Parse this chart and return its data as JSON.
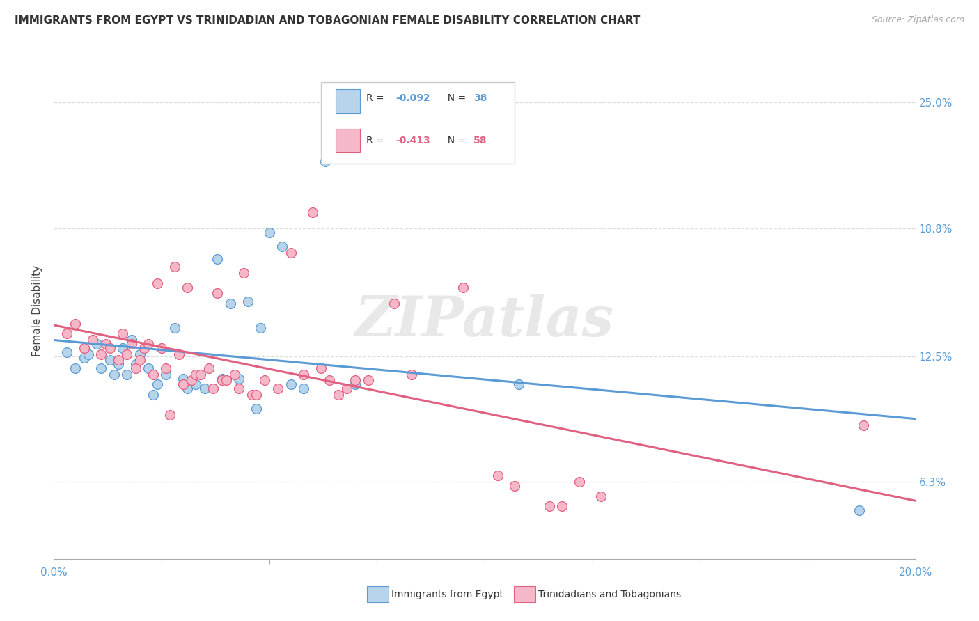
{
  "title": "IMMIGRANTS FROM EGYPT VS TRINIDADIAN AND TOBAGONIAN FEMALE DISABILITY CORRELATION CHART",
  "source": "Source: ZipAtlas.com",
  "ylabel": "Female Disability",
  "ytick_labels": [
    "6.3%",
    "12.5%",
    "18.8%",
    "25.0%"
  ],
  "ytick_values": [
    0.063,
    0.125,
    0.188,
    0.25
  ],
  "xlim": [
    0.0,
    0.2
  ],
  "ylim": [
    0.025,
    0.27
  ],
  "watermark": "ZIPatlas",
  "blue_color": "#b8d4ea",
  "pink_color": "#f5b8c8",
  "blue_line_color": "#5b9bd5",
  "pink_line_color": "#e06080",
  "blue_scatter": [
    [
      0.003,
      0.127
    ],
    [
      0.005,
      0.119
    ],
    [
      0.007,
      0.124
    ],
    [
      0.008,
      0.126
    ],
    [
      0.01,
      0.131
    ],
    [
      0.011,
      0.119
    ],
    [
      0.013,
      0.123
    ],
    [
      0.014,
      0.116
    ],
    [
      0.015,
      0.121
    ],
    [
      0.016,
      0.129
    ],
    [
      0.017,
      0.116
    ],
    [
      0.018,
      0.133
    ],
    [
      0.019,
      0.121
    ],
    [
      0.02,
      0.126
    ],
    [
      0.022,
      0.119
    ],
    [
      0.023,
      0.106
    ],
    [
      0.024,
      0.111
    ],
    [
      0.026,
      0.116
    ],
    [
      0.028,
      0.139
    ],
    [
      0.03,
      0.114
    ],
    [
      0.031,
      0.109
    ],
    [
      0.033,
      0.111
    ],
    [
      0.035,
      0.109
    ],
    [
      0.038,
      0.173
    ],
    [
      0.039,
      0.114
    ],
    [
      0.041,
      0.151
    ],
    [
      0.043,
      0.114
    ],
    [
      0.045,
      0.152
    ],
    [
      0.047,
      0.099
    ],
    [
      0.048,
      0.139
    ],
    [
      0.05,
      0.186
    ],
    [
      0.053,
      0.179
    ],
    [
      0.055,
      0.111
    ],
    [
      0.058,
      0.109
    ],
    [
      0.063,
      0.221
    ],
    [
      0.07,
      0.111
    ],
    [
      0.108,
      0.111
    ],
    [
      0.187,
      0.049
    ]
  ],
  "pink_scatter": [
    [
      0.003,
      0.136
    ],
    [
      0.005,
      0.141
    ],
    [
      0.007,
      0.129
    ],
    [
      0.009,
      0.133
    ],
    [
      0.011,
      0.126
    ],
    [
      0.012,
      0.131
    ],
    [
      0.013,
      0.129
    ],
    [
      0.015,
      0.123
    ],
    [
      0.016,
      0.136
    ],
    [
      0.017,
      0.126
    ],
    [
      0.018,
      0.131
    ],
    [
      0.019,
      0.119
    ],
    [
      0.02,
      0.123
    ],
    [
      0.021,
      0.129
    ],
    [
      0.022,
      0.131
    ],
    [
      0.023,
      0.116
    ],
    [
      0.024,
      0.161
    ],
    [
      0.025,
      0.129
    ],
    [
      0.026,
      0.119
    ],
    [
      0.027,
      0.096
    ],
    [
      0.028,
      0.169
    ],
    [
      0.029,
      0.126
    ],
    [
      0.03,
      0.111
    ],
    [
      0.031,
      0.159
    ],
    [
      0.032,
      0.113
    ],
    [
      0.033,
      0.116
    ],
    [
      0.034,
      0.116
    ],
    [
      0.036,
      0.119
    ],
    [
      0.037,
      0.109
    ],
    [
      0.038,
      0.156
    ],
    [
      0.039,
      0.113
    ],
    [
      0.04,
      0.113
    ],
    [
      0.042,
      0.116
    ],
    [
      0.043,
      0.109
    ],
    [
      0.044,
      0.166
    ],
    [
      0.046,
      0.106
    ],
    [
      0.047,
      0.106
    ],
    [
      0.049,
      0.113
    ],
    [
      0.052,
      0.109
    ],
    [
      0.055,
      0.176
    ],
    [
      0.058,
      0.116
    ],
    [
      0.06,
      0.196
    ],
    [
      0.062,
      0.119
    ],
    [
      0.064,
      0.113
    ],
    [
      0.066,
      0.106
    ],
    [
      0.068,
      0.109
    ],
    [
      0.07,
      0.113
    ],
    [
      0.073,
      0.113
    ],
    [
      0.079,
      0.151
    ],
    [
      0.083,
      0.116
    ],
    [
      0.095,
      0.159
    ],
    [
      0.103,
      0.066
    ],
    [
      0.107,
      0.061
    ],
    [
      0.115,
      0.051
    ],
    [
      0.118,
      0.051
    ],
    [
      0.122,
      0.063
    ],
    [
      0.127,
      0.056
    ],
    [
      0.188,
      0.091
    ]
  ],
  "background_color": "#ffffff",
  "grid_color": "#dddddd"
}
